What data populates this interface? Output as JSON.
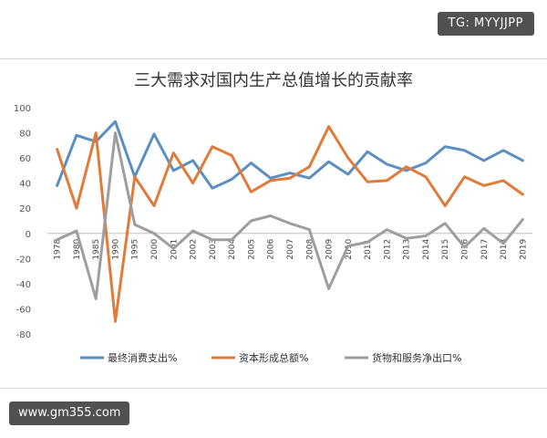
{
  "watermark_top": "TG: MYYJJPP",
  "watermark_bottom": "www.gm355.com",
  "chart_data": {
    "type": "line",
    "title": "三大需求对国内生产总值增长的贡献率",
    "categories": [
      "1978",
      "1980",
      "1985",
      "1990",
      "1995",
      "2000",
      "2001",
      "2002",
      "2003",
      "2004",
      "2005",
      "2006",
      "2007",
      "2008",
      "2009",
      "2010",
      "2011",
      "2012",
      "2013",
      "2014",
      "2015",
      "2016",
      "2017",
      "2018",
      "2019"
    ],
    "ylim": [
      -80,
      100
    ],
    "yticks": [
      100,
      80,
      60,
      40,
      20,
      0,
      -20,
      -40,
      -60,
      -80
    ],
    "grid": false,
    "legend_position": "bottom",
    "series": [
      {
        "name": "最终消费支出%",
        "color": "#5b8fc2",
        "values": [
          38,
          78,
          73,
          89,
          45,
          79,
          50,
          58,
          36,
          43,
          56,
          44,
          48,
          44,
          57,
          47,
          65,
          55,
          50,
          56,
          69,
          66,
          58,
          66,
          58
        ]
      },
      {
        "name": "资本形成总额%",
        "color": "#e07b39",
        "values": [
          67,
          20,
          80,
          -70,
          45,
          22,
          64,
          40,
          69,
          62,
          33,
          42,
          44,
          53,
          85,
          60,
          41,
          42,
          53,
          45,
          22,
          45,
          38,
          42,
          31
        ]
      },
      {
        "name": "货物和服务净出口%",
        "color": "#9e9e9e",
        "values": [
          -5,
          2,
          -52,
          80,
          7,
          0,
          -12,
          2,
          -5,
          -5,
          10,
          14,
          8,
          3,
          -44,
          -10,
          -7,
          3,
          -4,
          -2,
          8,
          -11,
          4,
          -8,
          11
        ]
      }
    ]
  }
}
